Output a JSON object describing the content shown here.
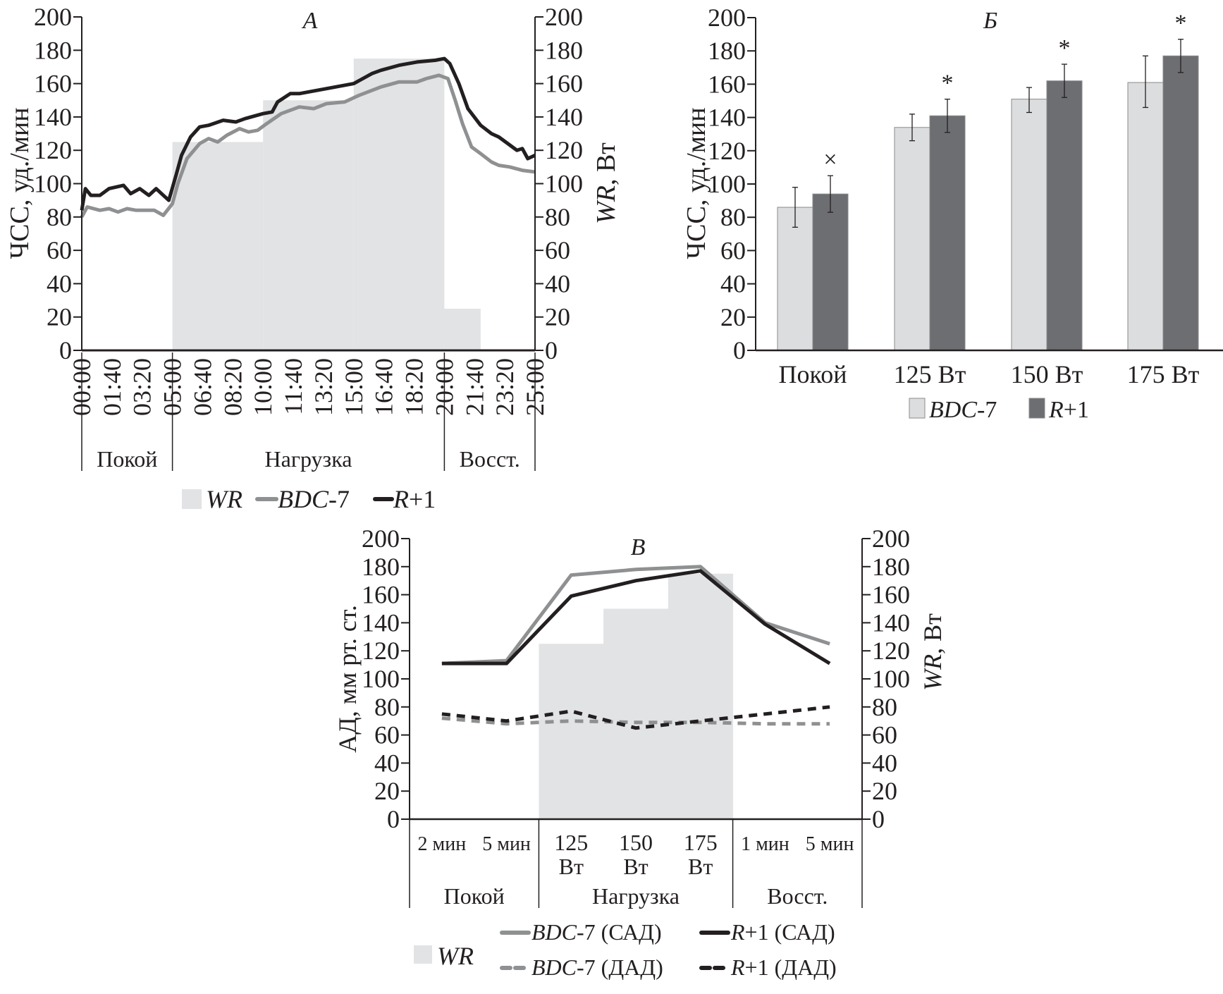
{
  "colors": {
    "wr_fill": "#e2e3e5",
    "bdc7": "#8f9092",
    "r1": "#231f20",
    "bar_bdc7": "#dcdddf",
    "bar_r1": "#6d6e71",
    "axis": "#231f20"
  },
  "chart_data": [
    {
      "id": "A",
      "type": "line",
      "title": "А",
      "ylabel": "ЧСС, уд./мин",
      "y2label_italic": "WR",
      "y2label_rest": ", Вт",
      "ylim": [
        0,
        200
      ],
      "y2lim": [
        0,
        200
      ],
      "yticks": [
        "0",
        "20",
        "40",
        "60",
        "80",
        "100",
        "120",
        "140",
        "160",
        "180",
        "200"
      ],
      "xlim_min": [
        0,
        25
      ],
      "xticks": [
        "00:00",
        "01:40",
        "03:20",
        "05:00",
        "06:40",
        "08:20",
        "10:00",
        "11:40",
        "13:20",
        "15:00",
        "16:40",
        "18:20",
        "20:00",
        "21:40",
        "23:20",
        "25:00"
      ],
      "phases": [
        {
          "label": "Покой",
          "from": 0,
          "to": 5
        },
        {
          "label": "Нагрузка",
          "from": 5,
          "to": 20
        },
        {
          "label": "Восст.",
          "from": 20,
          "to": 25
        }
      ],
      "wr_steps": [
        {
          "from": 5,
          "to": 10,
          "value": 125
        },
        {
          "from": 10,
          "to": 15,
          "value": 150
        },
        {
          "from": 15,
          "to": 20,
          "value": 175
        },
        {
          "from": 20,
          "to": 22,
          "value": 25
        }
      ],
      "series": [
        {
          "name": "BDC-7",
          "x": [
            0,
            0.3,
            1,
            1.5,
            2,
            2.5,
            3,
            3.5,
            4,
            4.5,
            5,
            5.3,
            5.8,
            6.5,
            7,
            7.5,
            8,
            8.7,
            9.2,
            9.7,
            10.2,
            11,
            12,
            12.8,
            13.5,
            14.5,
            15.3,
            16.5,
            17.5,
            18.5,
            19,
            19.7,
            20.2,
            20.6,
            21,
            21.5,
            22,
            22.6,
            23,
            23.6,
            24.3,
            25
          ],
          "y": [
            80,
            86,
            84,
            85,
            83,
            85,
            84,
            84,
            84,
            81,
            88,
            100,
            115,
            124,
            127,
            125,
            129,
            133,
            131,
            132,
            136,
            142,
            146,
            145,
            148,
            149,
            153,
            158,
            161,
            161,
            163,
            165,
            163,
            150,
            136,
            122,
            118,
            113,
            111,
            110,
            108,
            107
          ]
        },
        {
          "name": "R+1",
          "x": [
            0,
            0.2,
            0.5,
            1,
            1.5,
            2.3,
            2.7,
            3.2,
            3.7,
            4.1,
            4.5,
            4.8,
            5.2,
            5.5,
            6,
            6.5,
            7,
            7.8,
            8.5,
            9,
            10,
            10.5,
            10.8,
            11.5,
            12,
            13,
            14,
            15,
            16,
            16.5,
            17.5,
            18.5,
            19.5,
            20,
            20.3,
            20.8,
            21.3,
            22,
            22.6,
            23,
            23.5,
            24,
            24.3,
            24.6,
            25
          ],
          "y": [
            84,
            97,
            93,
            93,
            97,
            99,
            94,
            97,
            93,
            97,
            93,
            90,
            105,
            117,
            128,
            134,
            135,
            138,
            137,
            139,
            142,
            143,
            149,
            154,
            154,
            156,
            158,
            160,
            166,
            168,
            171,
            173,
            174,
            175,
            172,
            160,
            145,
            135,
            130,
            128,
            124,
            120,
            121,
            115,
            117
          ]
        }
      ],
      "legend": [
        {
          "kind": "wr",
          "label_italic": "WR",
          "label_rest": ""
        },
        {
          "kind": "bdc7",
          "label_italic": "BDC",
          "label_rest": "-7"
        },
        {
          "kind": "r1",
          "label_italic": "R",
          "label_rest": "+1"
        }
      ]
    },
    {
      "id": "B",
      "type": "bar",
      "title": "Б",
      "ylabel": "ЧСС, уд./мин",
      "ylim": [
        0,
        200
      ],
      "yticks": [
        "0",
        "20",
        "40",
        "60",
        "80",
        "100",
        "120",
        "140",
        "160",
        "180",
        "200"
      ],
      "categories": [
        "Покой",
        "125 Вт",
        "150 Вт",
        "175 Вт"
      ],
      "series": [
        {
          "name": "BDC-7",
          "values": [
            86,
            134,
            151,
            161
          ],
          "err_low": [
            74,
            126,
            143,
            146
          ],
          "err_high": [
            98,
            142,
            158,
            177
          ]
        },
        {
          "name": "R+1",
          "values": [
            94,
            141,
            162,
            177
          ],
          "err_low": [
            83,
            131,
            152,
            167
          ],
          "err_high": [
            105,
            151,
            172,
            187
          ]
        }
      ],
      "annotations": [
        "×",
        "*",
        "*",
        "*"
      ],
      "legend": [
        {
          "kind": "bar_bdc7",
          "label_italic": "BDC",
          "label_rest": "-7"
        },
        {
          "kind": "bar_r1",
          "label_italic": "R",
          "label_rest": "+1"
        }
      ]
    },
    {
      "id": "V",
      "type": "line",
      "title": "В",
      "ylabel": "АД, мм рт. ст.",
      "y2label_italic": "WR",
      "y2label_rest": ", Вт",
      "ylim": [
        0,
        200
      ],
      "y2lim": [
        0,
        200
      ],
      "yticks": [
        "0",
        "20",
        "40",
        "60",
        "80",
        "100",
        "120",
        "140",
        "160",
        "180",
        "200"
      ],
      "categories": [
        [
          "2 мин"
        ],
        [
          "5 мин"
        ],
        [
          "125",
          "Вт"
        ],
        [
          "150",
          "Вт"
        ],
        [
          "175",
          "Вт"
        ],
        [
          "1 мин"
        ],
        [
          "5 мин"
        ]
      ],
      "phases": [
        {
          "label": "Покой",
          "from": 0,
          "to": 2
        },
        {
          "label": "Нагрузка",
          "from": 2,
          "to": 5
        },
        {
          "label": "Восст.",
          "from": 5,
          "to": 7
        }
      ],
      "wr_steps": [
        {
          "cat": 2,
          "value": 125
        },
        {
          "cat": 3,
          "value": 150
        },
        {
          "cat": 4,
          "value": 175
        }
      ],
      "series": [
        {
          "name": "BDC-7 (САД)",
          "style": "bdc7-solid",
          "values": [
            111,
            113,
            174,
            178,
            180,
            140,
            125
          ]
        },
        {
          "name": "R+1 (САД)",
          "style": "r1-solid",
          "values": [
            111,
            111,
            159,
            170,
            177,
            139,
            111
          ]
        },
        {
          "name": "BDC-7 (ДАД)",
          "style": "bdc7-dash",
          "values": [
            72,
            68,
            70,
            69,
            69,
            68,
            68
          ]
        },
        {
          "name": "R+1 (ДАД)",
          "style": "r1-dash",
          "values": [
            75,
            70,
            77,
            65,
            70,
            75,
            80
          ]
        }
      ],
      "legend": [
        {
          "kind": "wr",
          "label_italic": "WR",
          "label_rest": ""
        },
        {
          "kind": "bdc7-solid",
          "label_italic": "BDC",
          "label_rest": "-7 (САД)"
        },
        {
          "kind": "r1-solid",
          "label_italic": "R",
          "label_rest": "+1 (САД)"
        },
        {
          "kind": "bdc7-dash",
          "label_italic": "BDC",
          "label_rest": "-7 (ДАД)"
        },
        {
          "kind": "r1-dash",
          "label_italic": "R",
          "label_rest": "+1 (ДАД)"
        }
      ]
    }
  ]
}
